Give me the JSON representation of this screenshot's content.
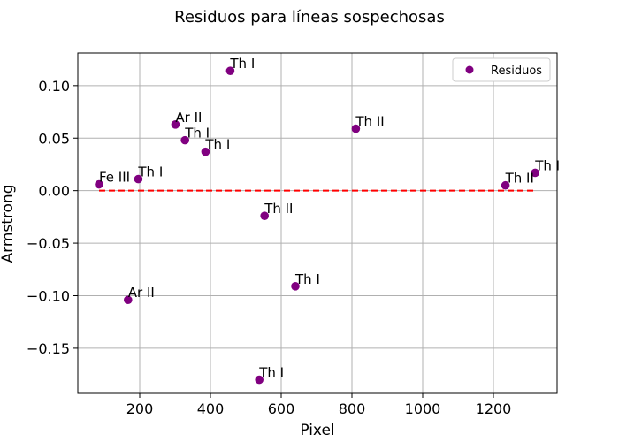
{
  "chart_data": {
    "type": "scatter",
    "title": "Residuos para líneas sospechosas",
    "xlabel": "Pixel",
    "ylabel": "Armstrong",
    "xlim": [
      25,
      1380
    ],
    "ylim": [
      -0.193,
      0.131
    ],
    "xticks": [
      200,
      400,
      600,
      800,
      1000,
      1200
    ],
    "yticks": [
      -0.15,
      -0.1,
      -0.05,
      0.0,
      0.05,
      0.1
    ],
    "xtick_labels": [
      "200",
      "400",
      "600",
      "800",
      "1000",
      "1200"
    ],
    "ytick_labels": [
      "−0.15",
      "−0.10",
      "−0.05",
      "0.00",
      "0.05",
      "0.10"
    ],
    "grid": true,
    "legend": {
      "position": "top-right",
      "entries": [
        "Residuos"
      ]
    },
    "series": [
      {
        "name": "Residuos",
        "color": "#800080",
        "points": [
          {
            "x": 85,
            "y": 0.006,
            "label": "Fe III"
          },
          {
            "x": 167,
            "y": -0.104,
            "label": "Ar II"
          },
          {
            "x": 196,
            "y": 0.011,
            "label": "Th I"
          },
          {
            "x": 301,
            "y": 0.063,
            "label": "Ar II"
          },
          {
            "x": 328,
            "y": 0.048,
            "label": "Th I"
          },
          {
            "x": 386,
            "y": 0.037,
            "label": "Th I"
          },
          {
            "x": 456,
            "y": 0.114,
            "label": "Th I"
          },
          {
            "x": 538,
            "y": -0.18,
            "label": "Th I"
          },
          {
            "x": 553,
            "y": -0.024,
            "label": "Th II"
          },
          {
            "x": 640,
            "y": -0.091,
            "label": "Th I"
          },
          {
            "x": 811,
            "y": 0.059,
            "label": "Th II"
          },
          {
            "x": 1234,
            "y": 0.005,
            "label": "Th II"
          },
          {
            "x": 1318,
            "y": 0.017,
            "label": "Th I"
          }
        ]
      }
    ],
    "reference_line": {
      "y": 0.0,
      "x_range": [
        85,
        1318
      ],
      "style": "dashed",
      "color": "#ff0000"
    }
  }
}
